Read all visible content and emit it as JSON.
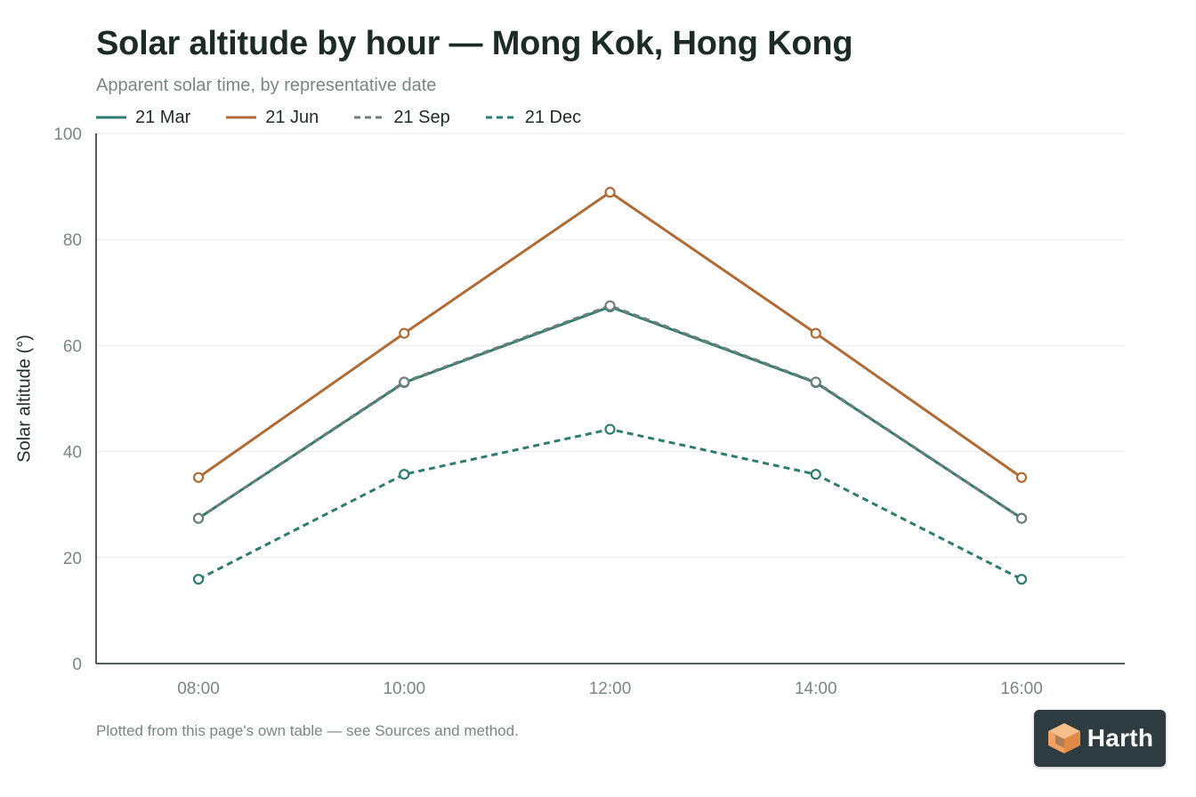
{
  "chart_data": {
    "type": "line",
    "title": "Solar altitude by hour — Mong Kok, Hong Kong",
    "subtitle": "Apparent solar time, by representative date",
    "xlabel": "",
    "ylabel": "Solar altitude (°)",
    "categories": [
      "08:00",
      "10:00",
      "12:00",
      "14:00",
      "16:00"
    ],
    "ylim": [
      0,
      100
    ],
    "yticks": [
      "0",
      "20",
      "40",
      "60",
      "80",
      "100"
    ],
    "grid": true,
    "legend_position": "top-left",
    "series": [
      {
        "name": "21 Mar",
        "values": [
          27.4,
          53.0,
          67.3,
          53.0,
          27.4
        ],
        "color": "#2e7b6f",
        "dash": "solid"
      },
      {
        "name": "21 Jun",
        "values": [
          35.1,
          62.3,
          88.9,
          62.3,
          35.1
        ],
        "color": "#b06b35",
        "dash": "solid"
      },
      {
        "name": "21 Sep",
        "values": [
          27.4,
          53.1,
          67.5,
          53.1,
          27.4
        ],
        "color": "#6e7e7a",
        "dash": "dashed"
      },
      {
        "name": "21 Dec",
        "values": [
          15.9,
          35.7,
          44.2,
          35.7,
          15.9
        ],
        "color": "#2e7b6f",
        "dash": "dashed"
      }
    ]
  },
  "footnote": "Plotted from this page's own table — see Sources and method.",
  "logo": {
    "text": "Harth",
    "icon": "cube-icon",
    "accent": "#f4a261"
  }
}
